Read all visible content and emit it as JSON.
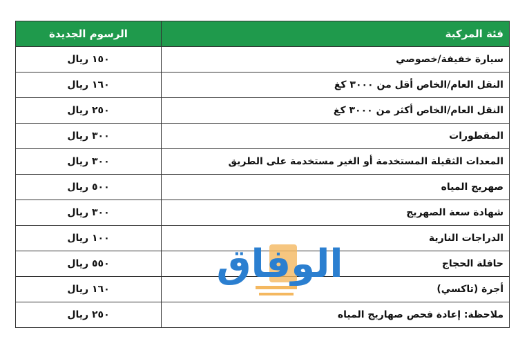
{
  "header": {
    "category": "فئة المركبة",
    "fee": "الرسوم الجديدة"
  },
  "rows": [
    {
      "category": "سيارة خفيفة/خصوصي",
      "fee": "١٥٠ ريال"
    },
    {
      "category": "النقل العام/الخاص أقل من ٣٠٠٠ كغ",
      "fee": "١٦٠ ريال"
    },
    {
      "category": "النقل العام/الخاص أكثر من ٣٠٠٠ كغ",
      "fee": "٢٥٠ ريال"
    },
    {
      "category": "المقطورات",
      "fee": "٣٠٠ ريال"
    },
    {
      "category": "المعدات الثقيلة المستخدمة أو الغير مستخدمة على الطريق",
      "fee": "٣٠٠ ريال"
    },
    {
      "category": "صهريج المياه",
      "fee": "٥٠٠ ريال"
    },
    {
      "category": "شهادة سعة الصهريج",
      "fee": "٣٠٠ ريال"
    },
    {
      "category": "الدراجات النارية",
      "fee": "١٠٠ ريال"
    },
    {
      "category": "حافلة الحجاج",
      "fee": "٥٥٠ ريال"
    },
    {
      "category": "أجرة (تاكسي)",
      "fee": "١٦٠ ريال"
    },
    {
      "category": "ملاحظة: إعادة فحص صهاريج المياه",
      "fee": "٢٥٠ ريال"
    }
  ],
  "watermark": {
    "text": "الوفاق",
    "color": "#2b7fd0",
    "accent": "#f4b860"
  },
  "colors": {
    "header_bg": "#1f9a4c"
  }
}
